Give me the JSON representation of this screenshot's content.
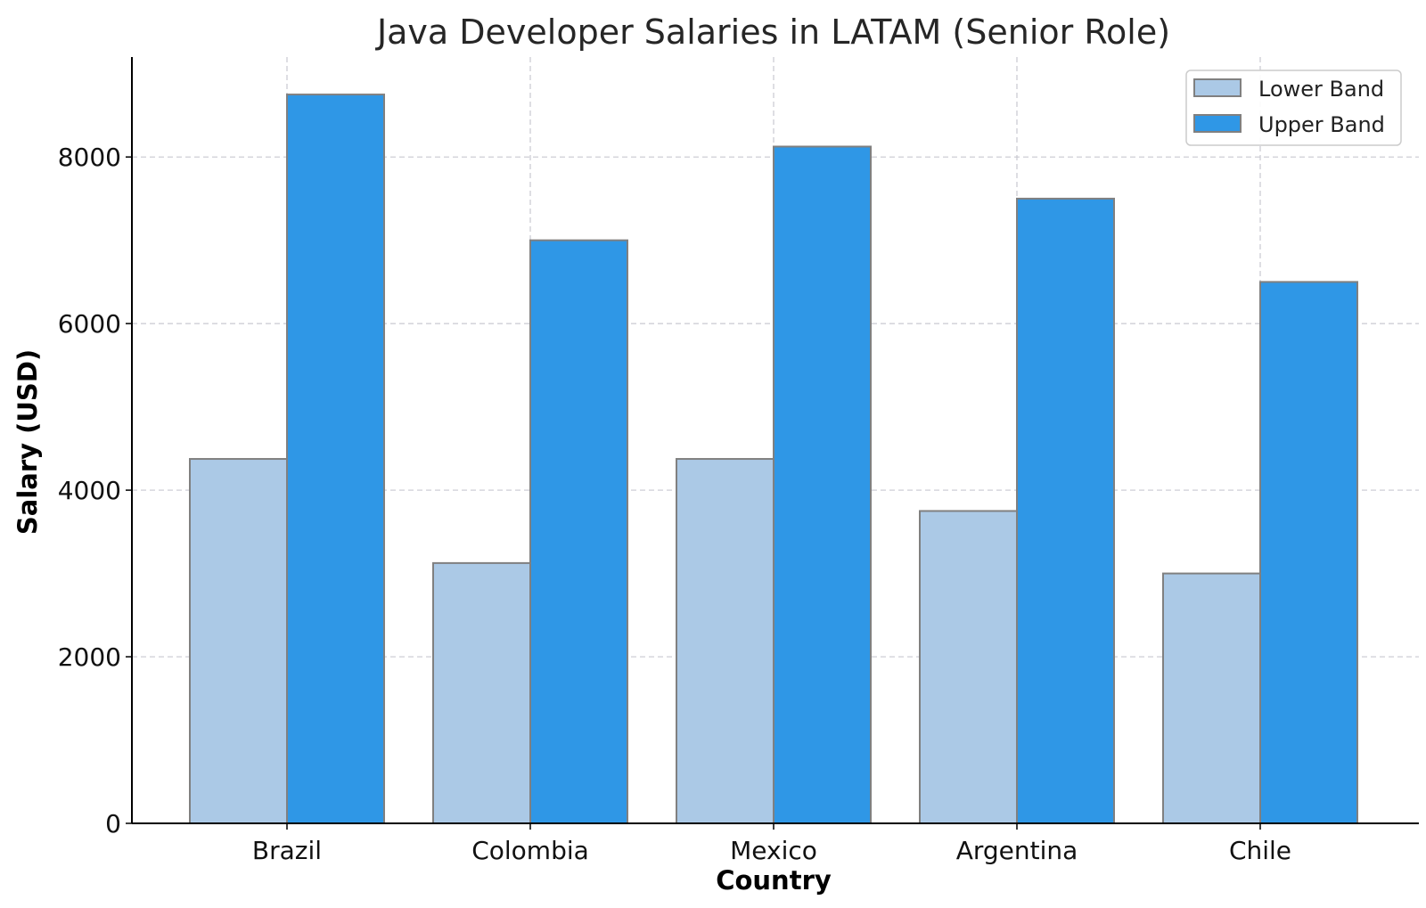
{
  "chart_data": {
    "type": "bar",
    "title": "Java Developer Salaries in LATAM (Senior Role)",
    "xlabel": "Country",
    "ylabel": "Salary (USD)",
    "categories": [
      "Brazil",
      "Colombia",
      "Mexico",
      "Argentina",
      "Chile"
    ],
    "series": [
      {
        "name": "Lower Band",
        "color": "#abc9e6",
        "values": [
          4375,
          3125,
          4375,
          3750,
          3000
        ]
      },
      {
        "name": "Upper Band",
        "color": "#2f97e6",
        "values": [
          8750,
          7000,
          8125,
          7500,
          6500
        ]
      }
    ],
    "ylim": [
      0,
      9200
    ],
    "yticks": [
      0,
      2000,
      4000,
      6000,
      8000
    ],
    "grid": true,
    "legend_position": "top-right"
  }
}
